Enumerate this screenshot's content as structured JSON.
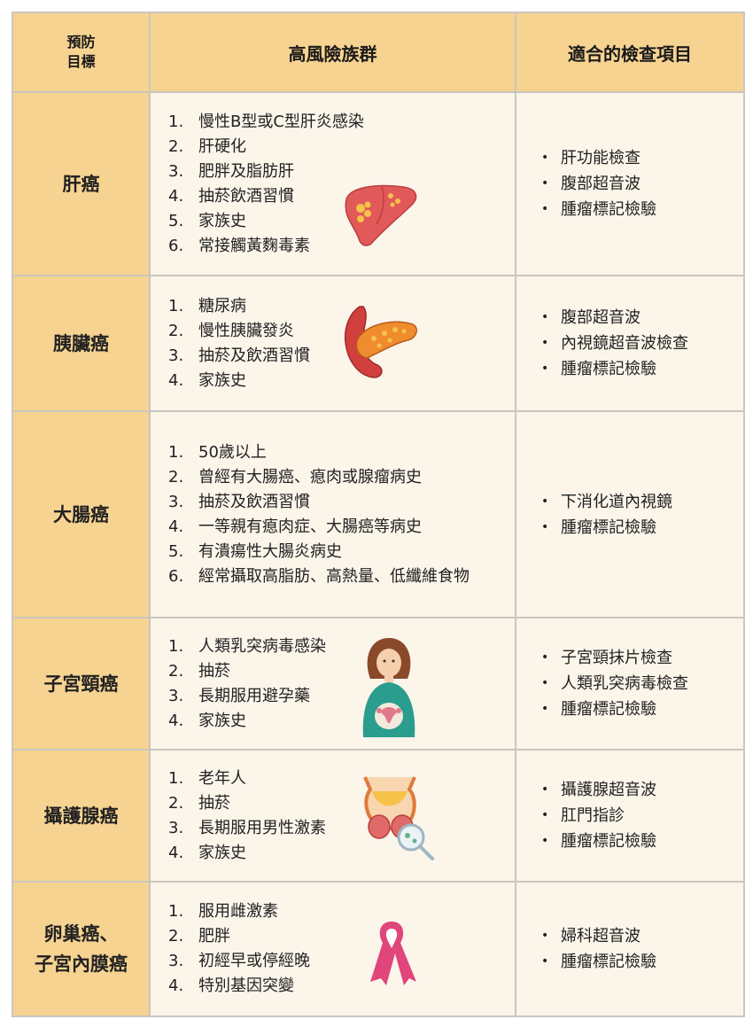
{
  "header": {
    "col1": "預防\n目標",
    "col2": "高風險族群",
    "col3": "適合的檢查項目"
  },
  "rows": [
    {
      "target": "肝癌",
      "risks": [
        {
          "num": "1.",
          "text": "慢性B型或C型肝炎感染"
        },
        {
          "num": "2.",
          "text": "肝硬化"
        },
        {
          "num": "3.",
          "text": "肥胖及脂肪肝"
        },
        {
          "num": "4.",
          "text": "抽菸飲酒習慣"
        },
        {
          "num": "5.",
          "text": "家族史"
        },
        {
          "num": "6.",
          "text": "常接觸黃麴毒素"
        }
      ],
      "exams": [
        "肝功能檢查",
        "腹部超音波",
        "腫瘤標記檢驗"
      ],
      "illustration": "liver-icon"
    },
    {
      "target": "胰臟癌",
      "risks": [
        {
          "num": "1.",
          "text": "糖尿病"
        },
        {
          "num": "2.",
          "text": "慢性胰臟發炎"
        },
        {
          "num": "3.",
          "text": "抽菸及飲酒習慣"
        },
        {
          "num": "4.",
          "text": "家族史"
        }
      ],
      "exams": [
        "腹部超音波",
        "內視鏡超音波檢查",
        "腫瘤標記檢驗"
      ],
      "illustration": "pancreas-icon"
    },
    {
      "target": "大腸癌",
      "risks": [
        {
          "num": "1.",
          "text": "50歲以上"
        },
        {
          "num": "2.",
          "text": "曾經有大腸癌、瘜肉或腺瘤病史"
        },
        {
          "num": "3.",
          "text": "抽菸及飲酒習慣"
        },
        {
          "num": "4.",
          "text": "一等親有瘜肉症、大腸癌等病史"
        },
        {
          "num": "5.",
          "text": "有潰瘍性大腸炎病史"
        },
        {
          "num": "6.",
          "text": "經常攝取高脂肪、高熱量、低纖維食物"
        }
      ],
      "exams": [
        "下消化道內視鏡",
        "腫瘤標記檢驗"
      ]
    },
    {
      "target": "子宮頸癌",
      "risks": [
        {
          "num": "1.",
          "text": "人類乳突病毒感染"
        },
        {
          "num": "2.",
          "text": "抽菸"
        },
        {
          "num": "3.",
          "text": "長期服用避孕藥"
        },
        {
          "num": "4.",
          "text": "家族史"
        }
      ],
      "exams": [
        "子宮頸抹片檢查",
        "人類乳突病毒檢查",
        "腫瘤標記檢驗"
      ],
      "illustration": "woman-uterus-icon"
    },
    {
      "target": "攝護腺癌",
      "risks": [
        {
          "num": "1.",
          "text": "老年人"
        },
        {
          "num": "2.",
          "text": "抽菸"
        },
        {
          "num": "3.",
          "text": "長期服用男性激素"
        },
        {
          "num": "4.",
          "text": "家族史"
        }
      ],
      "exams": [
        "攝護腺超音波",
        "肛門指診",
        "腫瘤標記檢驗"
      ],
      "illustration": "prostate-icon"
    },
    {
      "target": "卵巢癌、\n子宮內膜癌",
      "risks": [
        {
          "num": "1.",
          "text": "服用雌激素"
        },
        {
          "num": "2.",
          "text": "肥胖"
        },
        {
          "num": "3.",
          "text": "初經早或停經晚"
        },
        {
          "num": "4.",
          "text": "特別基因突變"
        }
      ],
      "exams": [
        "婦科超音波",
        "腫瘤標記檢驗"
      ],
      "illustration": "pink-ribbon-icon"
    }
  ],
  "colors": {
    "header_bg": "#f7d391",
    "cell_bg": "#fbf5ea",
    "border": "#c9c6c0"
  }
}
